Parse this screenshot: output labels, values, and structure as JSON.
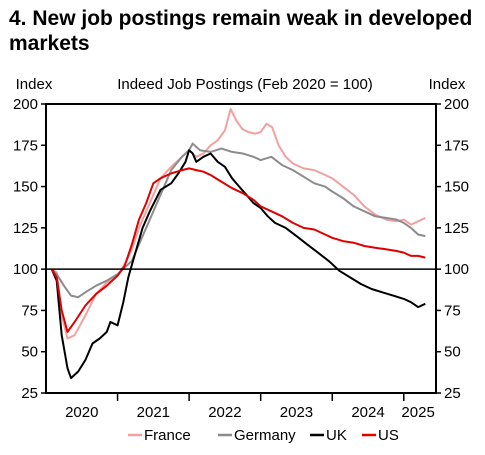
{
  "title": "4. New job postings remain weak in developed markets",
  "chart_data": {
    "type": "line",
    "title": "Indeed Job Postings (Feb 2020 = 100)",
    "ylabel_left": "Index",
    "ylabel_right": "Index",
    "ylim": [
      25,
      200
    ],
    "yticks": [
      25,
      50,
      75,
      100,
      125,
      150,
      175,
      200
    ],
    "xlim": [
      2020.0,
      2025.45
    ],
    "xlabels": [
      {
        "label": "2020",
        "at": 2020.5
      },
      {
        "label": "2021",
        "at": 2021.5
      },
      {
        "label": "2022",
        "at": 2022.5
      },
      {
        "label": "2023",
        "at": 2023.5
      },
      {
        "label": "2024",
        "at": 2024.5
      },
      {
        "label": "2025",
        "at": 2025.2
      }
    ],
    "xticks": [
      2021,
      2022,
      2023,
      2024,
      2025
    ],
    "reference_line": 100,
    "legend_position": "bottom",
    "series": [
      {
        "name": "France",
        "color": "#f4a0a0",
        "points": [
          [
            2020.08,
            100
          ],
          [
            2020.15,
            98
          ],
          [
            2020.22,
            72
          ],
          [
            2020.3,
            58
          ],
          [
            2020.4,
            60
          ],
          [
            2020.55,
            72
          ],
          [
            2020.7,
            85
          ],
          [
            2020.85,
            92
          ],
          [
            2021.0,
            96
          ],
          [
            2021.1,
            103
          ],
          [
            2021.2,
            112
          ],
          [
            2021.3,
            125
          ],
          [
            2021.45,
            140
          ],
          [
            2021.6,
            155
          ],
          [
            2021.75,
            162
          ],
          [
            2021.9,
            168
          ],
          [
            2022.0,
            172
          ],
          [
            2022.1,
            168
          ],
          [
            2022.2,
            170
          ],
          [
            2022.3,
            175
          ],
          [
            2022.4,
            178
          ],
          [
            2022.5,
            184
          ],
          [
            2022.58,
            197
          ],
          [
            2022.66,
            190
          ],
          [
            2022.74,
            185
          ],
          [
            2022.83,
            183
          ],
          [
            2022.92,
            182
          ],
          [
            2023.0,
            183
          ],
          [
            2023.08,
            188
          ],
          [
            2023.16,
            186
          ],
          [
            2023.25,
            175
          ],
          [
            2023.35,
            168
          ],
          [
            2023.45,
            164
          ],
          [
            2023.6,
            161
          ],
          [
            2023.75,
            160
          ],
          [
            2023.9,
            157
          ],
          [
            2024.0,
            155
          ],
          [
            2024.15,
            150
          ],
          [
            2024.3,
            145
          ],
          [
            2024.45,
            138
          ],
          [
            2024.6,
            133
          ],
          [
            2024.75,
            130
          ],
          [
            2024.9,
            129
          ],
          [
            2025.0,
            130
          ],
          [
            2025.1,
            127
          ],
          [
            2025.2,
            129
          ],
          [
            2025.3,
            131
          ]
        ]
      },
      {
        "name": "Germany",
        "color": "#8c8c8c",
        "points": [
          [
            2020.08,
            100
          ],
          [
            2020.15,
            97
          ],
          [
            2020.25,
            90
          ],
          [
            2020.35,
            84
          ],
          [
            2020.45,
            83
          ],
          [
            2020.55,
            86
          ],
          [
            2020.7,
            90
          ],
          [
            2020.85,
            93
          ],
          [
            2021.0,
            97
          ],
          [
            2021.1,
            101
          ],
          [
            2021.2,
            105
          ],
          [
            2021.3,
            115
          ],
          [
            2021.45,
            130
          ],
          [
            2021.6,
            145
          ],
          [
            2021.75,
            160
          ],
          [
            2021.9,
            168
          ],
          [
            2022.0,
            172
          ],
          [
            2022.05,
            176
          ],
          [
            2022.15,
            172
          ],
          [
            2022.3,
            171
          ],
          [
            2022.45,
            173
          ],
          [
            2022.6,
            171
          ],
          [
            2022.75,
            170
          ],
          [
            2022.9,
            168
          ],
          [
            2023.0,
            166
          ],
          [
            2023.15,
            168
          ],
          [
            2023.3,
            163
          ],
          [
            2023.45,
            160
          ],
          [
            2023.6,
            156
          ],
          [
            2023.75,
            152
          ],
          [
            2023.9,
            150
          ],
          [
            2024.0,
            147
          ],
          [
            2024.15,
            143
          ],
          [
            2024.3,
            138
          ],
          [
            2024.45,
            135
          ],
          [
            2024.6,
            132
          ],
          [
            2024.75,
            131
          ],
          [
            2024.9,
            130
          ],
          [
            2025.0,
            128
          ],
          [
            2025.1,
            125
          ],
          [
            2025.2,
            121
          ],
          [
            2025.3,
            120
          ]
        ]
      },
      {
        "name": "UK",
        "color": "#000000",
        "points": [
          [
            2020.08,
            100
          ],
          [
            2020.15,
            93
          ],
          [
            2020.22,
            60
          ],
          [
            2020.3,
            40
          ],
          [
            2020.35,
            34
          ],
          [
            2020.45,
            38
          ],
          [
            2020.55,
            45
          ],
          [
            2020.65,
            55
          ],
          [
            2020.75,
            58
          ],
          [
            2020.85,
            62
          ],
          [
            2020.9,
            68
          ],
          [
            2021.0,
            66
          ],
          [
            2021.08,
            80
          ],
          [
            2021.15,
            95
          ],
          [
            2021.25,
            110
          ],
          [
            2021.35,
            125
          ],
          [
            2021.45,
            135
          ],
          [
            2021.6,
            148
          ],
          [
            2021.75,
            152
          ],
          [
            2021.85,
            158
          ],
          [
            2021.95,
            165
          ],
          [
            2022.0,
            172
          ],
          [
            2022.05,
            170
          ],
          [
            2022.1,
            165
          ],
          [
            2022.2,
            168
          ],
          [
            2022.3,
            170
          ],
          [
            2022.4,
            165
          ],
          [
            2022.5,
            162
          ],
          [
            2022.6,
            155
          ],
          [
            2022.7,
            150
          ],
          [
            2022.8,
            145
          ],
          [
            2022.9,
            140
          ],
          [
            2023.0,
            137
          ],
          [
            2023.1,
            132
          ],
          [
            2023.2,
            128
          ],
          [
            2023.35,
            125
          ],
          [
            2023.5,
            120
          ],
          [
            2023.65,
            115
          ],
          [
            2023.8,
            110
          ],
          [
            2023.95,
            105
          ],
          [
            2024.1,
            99
          ],
          [
            2024.25,
            95
          ],
          [
            2024.4,
            91
          ],
          [
            2024.55,
            88
          ],
          [
            2024.7,
            86
          ],
          [
            2024.85,
            84
          ],
          [
            2025.0,
            82
          ],
          [
            2025.1,
            80
          ],
          [
            2025.2,
            77
          ],
          [
            2025.3,
            79
          ]
        ]
      },
      {
        "name": "US",
        "color": "#e00000",
        "points": [
          [
            2020.08,
            100
          ],
          [
            2020.15,
            95
          ],
          [
            2020.22,
            75
          ],
          [
            2020.3,
            62
          ],
          [
            2020.4,
            68
          ],
          [
            2020.55,
            78
          ],
          [
            2020.7,
            85
          ],
          [
            2020.85,
            90
          ],
          [
            2021.0,
            96
          ],
          [
            2021.1,
            102
          ],
          [
            2021.2,
            115
          ],
          [
            2021.3,
            130
          ],
          [
            2021.4,
            140
          ],
          [
            2021.5,
            152
          ],
          [
            2021.6,
            155
          ],
          [
            2021.75,
            158
          ],
          [
            2021.9,
            160
          ],
          [
            2022.0,
            161
          ],
          [
            2022.1,
            160
          ],
          [
            2022.2,
            159
          ],
          [
            2022.3,
            157
          ],
          [
            2022.45,
            153
          ],
          [
            2022.6,
            149
          ],
          [
            2022.75,
            146
          ],
          [
            2022.9,
            142
          ],
          [
            2023.0,
            138
          ],
          [
            2023.15,
            135
          ],
          [
            2023.3,
            132
          ],
          [
            2023.45,
            128
          ],
          [
            2023.6,
            125
          ],
          [
            2023.75,
            124
          ],
          [
            2023.9,
            121
          ],
          [
            2024.0,
            119
          ],
          [
            2024.15,
            117
          ],
          [
            2024.3,
            116
          ],
          [
            2024.45,
            114
          ],
          [
            2024.6,
            113
          ],
          [
            2024.75,
            112
          ],
          [
            2024.9,
            111
          ],
          [
            2025.0,
            110
          ],
          [
            2025.1,
            108
          ],
          [
            2025.2,
            108
          ],
          [
            2025.3,
            107
          ]
        ]
      }
    ]
  }
}
